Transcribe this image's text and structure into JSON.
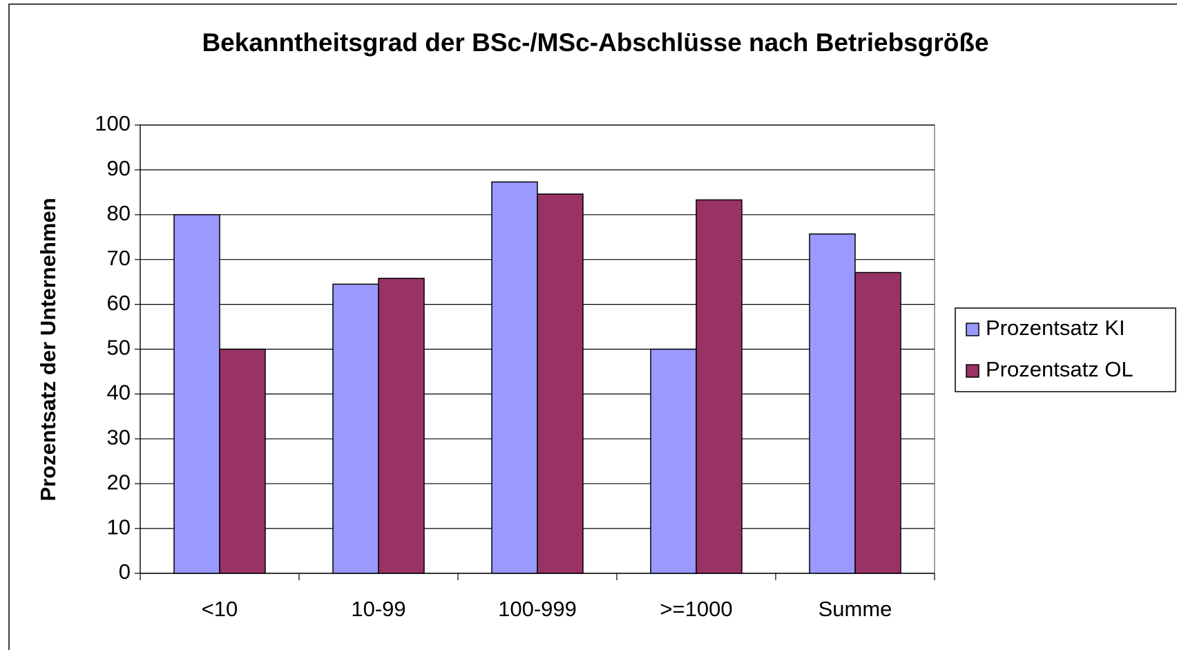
{
  "chart_data": {
    "type": "bar",
    "title": "Bekanntheitsgrad der BSc-/MSc-Abschlüsse nach Betriebsgröße",
    "y_label": "Prozentsatz der Unternehmen",
    "categories": [
      "<10",
      "10-99",
      "100-999",
      ">=1000",
      "Summe"
    ],
    "series": [
      {
        "name": "Prozentsatz KI",
        "color": "#9999ff",
        "values": [
          80,
          64.5,
          87.3,
          50,
          75.7
        ]
      },
      {
        "name": "Prozentsatz OL",
        "color": "#993366",
        "values": [
          50,
          65.8,
          84.6,
          83.3,
          67.1
        ]
      }
    ],
    "ylim": [
      0,
      100
    ],
    "yticks": [
      0,
      10,
      20,
      30,
      40,
      50,
      60,
      70,
      80,
      90,
      100
    ],
    "grid": true,
    "legend": "right"
  }
}
